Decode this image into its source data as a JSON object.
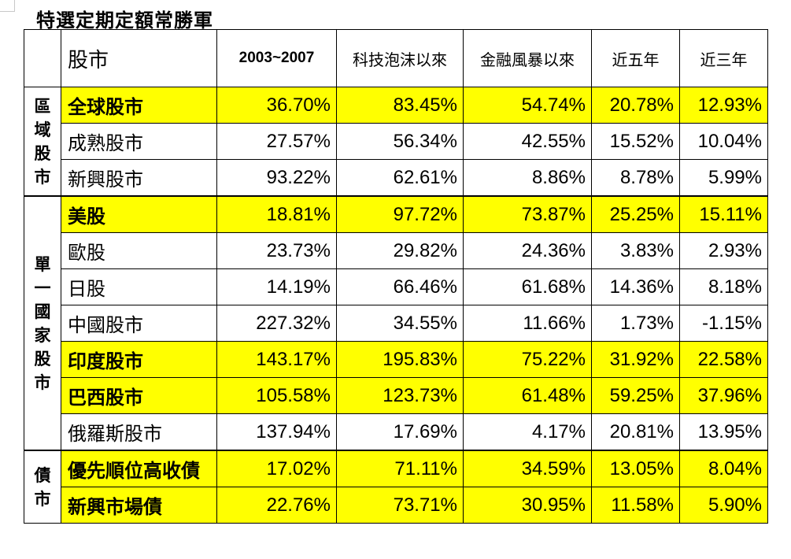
{
  "title": "特選定期定額常勝軍",
  "table": {
    "header": [
      "股市",
      "2003~2007",
      "科技泡沫以來",
      "金融風暴以來",
      "近五年",
      "近三年"
    ],
    "groups": [
      {
        "label": "區域股市",
        "rows": [
          {
            "name": "全球股市",
            "highlight": true,
            "values": [
              "36.70%",
              "83.45%",
              "54.74%",
              "20.78%",
              "12.93%"
            ]
          },
          {
            "name": "成熟股市",
            "highlight": false,
            "values": [
              "27.57%",
              "56.34%",
              "42.55%",
              "15.52%",
              "10.04%"
            ]
          },
          {
            "name": "新興股市",
            "highlight": false,
            "values": [
              "93.22%",
              "62.61%",
              "8.86%",
              "8.78%",
              "5.99%"
            ]
          }
        ]
      },
      {
        "label": "單一國家股市",
        "rows": [
          {
            "name": "美股",
            "highlight": true,
            "values": [
              "18.81%",
              "97.72%",
              "73.87%",
              "25.25%",
              "15.11%"
            ]
          },
          {
            "name": "歐股",
            "highlight": false,
            "values": [
              "23.73%",
              "29.82%",
              "24.36%",
              "3.83%",
              "2.93%"
            ]
          },
          {
            "name": "日股",
            "highlight": false,
            "values": [
              "14.19%",
              "66.46%",
              "61.68%",
              "14.36%",
              "8.18%"
            ]
          },
          {
            "name": "中國股市",
            "highlight": false,
            "values": [
              "227.32%",
              "34.55%",
              "11.66%",
              "1.73%",
              "-1.15%"
            ]
          },
          {
            "name": "印度股市",
            "highlight": true,
            "values": [
              "143.17%",
              "195.83%",
              "75.22%",
              "31.92%",
              "22.58%"
            ]
          },
          {
            "name": "巴西股市",
            "highlight": true,
            "values": [
              "105.58%",
              "123.73%",
              "61.48%",
              "59.25%",
              "37.96%"
            ]
          },
          {
            "name": "俄羅斯股市",
            "highlight": false,
            "values": [
              "137.94%",
              "17.69%",
              "4.17%",
              "20.81%",
              "13.95%"
            ]
          }
        ]
      },
      {
        "label": "債市",
        "rows": [
          {
            "name": "優先順位高收債",
            "highlight": true,
            "values": [
              "17.02%",
              "71.11%",
              "34.59%",
              "13.05%",
              "8.04%"
            ]
          },
          {
            "name": "新興市場債",
            "highlight": true,
            "values": [
              "22.76%",
              "73.71%",
              "30.95%",
              "11.58%",
              "5.90%"
            ]
          }
        ]
      }
    ]
  }
}
